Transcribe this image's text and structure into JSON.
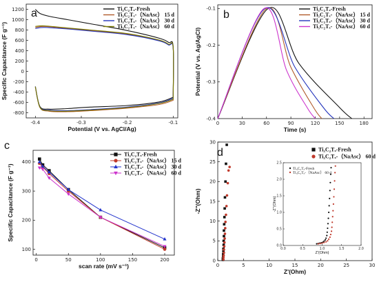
{
  "figure": {
    "panels": [
      "a",
      "b",
      "c",
      "d"
    ]
  },
  "chart_data": [
    {
      "id": "a",
      "type": "line",
      "label": "a",
      "xlabel": "Potential (V vs. AgCl/Ag)",
      "ylabel": "Specific Capacitance (F g⁻¹)",
      "xlim": [
        -0.42,
        -0.09
      ],
      "ylim": [
        -900,
        1300
      ],
      "xticks": [
        -0.4,
        -0.3,
        -0.2,
        -0.1
      ],
      "xticklabels": [
        "-0.4",
        "-0.3",
        "-0.2",
        "-0.1"
      ],
      "yticks": [
        -800,
        -600,
        -400,
        -200,
        0,
        200,
        400,
        600,
        800,
        1000,
        1200
      ],
      "legend": "top-right",
      "series": [
        {
          "name": "Ti₃C₂Tₓ-Fresh",
          "color": "#111111",
          "upper": [
            [
              -0.4,
              1200
            ],
            [
              -0.39,
              1120
            ],
            [
              -0.37,
              1065
            ],
            [
              -0.33,
              1000
            ],
            [
              -0.28,
              920
            ],
            [
              -0.2,
              790
            ],
            [
              -0.13,
              640
            ],
            [
              -0.11,
              560
            ],
            [
              -0.1,
              480
            ],
            [
              -0.1,
              -500
            ]
          ],
          "lower": [
            [
              -0.1,
              -500
            ],
            [
              -0.13,
              -590
            ],
            [
              -0.2,
              -660
            ],
            [
              -0.28,
              -690
            ],
            [
              -0.33,
              -720
            ],
            [
              -0.37,
              -730
            ],
            [
              -0.39,
              -680
            ],
            [
              -0.4,
              -300
            ]
          ]
        },
        {
          "name": "Ti₃C₂Tₓ-（NaAsc） 15 d",
          "color": "#b05a2a",
          "upper": [
            [
              -0.4,
              850
            ],
            [
              -0.38,
              870
            ],
            [
              -0.33,
              830
            ],
            [
              -0.28,
              790
            ],
            [
              -0.2,
              720
            ],
            [
              -0.13,
              600
            ],
            [
              -0.11,
              520
            ],
            [
              -0.1,
              460
            ],
            [
              -0.1,
              -560
            ]
          ],
          "lower": [
            [
              -0.1,
              -560
            ],
            [
              -0.13,
              -640
            ],
            [
              -0.2,
              -710
            ],
            [
              -0.28,
              -760
            ],
            [
              -0.33,
              -780
            ],
            [
              -0.37,
              -770
            ],
            [
              -0.39,
              -700
            ],
            [
              -0.4,
              -300
            ]
          ]
        },
        {
          "name": "Ti₃C₂Tₓ-（NaAsc） 30 d",
          "color": "#2233bb",
          "upper": [
            [
              -0.4,
              830
            ],
            [
              -0.38,
              850
            ],
            [
              -0.33,
              820
            ],
            [
              -0.28,
              780
            ],
            [
              -0.2,
              710
            ],
            [
              -0.13,
              590
            ],
            [
              -0.11,
              510
            ],
            [
              -0.1,
              450
            ],
            [
              -0.1,
              -520
            ]
          ],
          "lower": [
            [
              -0.1,
              -520
            ],
            [
              -0.13,
              -610
            ],
            [
              -0.2,
              -690
            ],
            [
              -0.28,
              -740
            ],
            [
              -0.33,
              -760
            ],
            [
              -0.37,
              -750
            ],
            [
              -0.39,
              -690
            ],
            [
              -0.4,
              -290
            ]
          ]
        },
        {
          "name": "Ti₃C₂Tₓ-（NaAsc） 60 d",
          "color": "#7a7a00",
          "upper": [
            [
              -0.4,
              870
            ],
            [
              -0.38,
              880
            ],
            [
              -0.33,
              840
            ],
            [
              -0.28,
              800
            ],
            [
              -0.2,
              730
            ],
            [
              -0.13,
              605
            ],
            [
              -0.11,
              525
            ],
            [
              -0.1,
              465
            ],
            [
              -0.1,
              -540
            ]
          ],
          "lower": [
            [
              -0.1,
              -540
            ],
            [
              -0.13,
              -620
            ],
            [
              -0.2,
              -700
            ],
            [
              -0.28,
              -750
            ],
            [
              -0.33,
              -770
            ],
            [
              -0.37,
              -760
            ],
            [
              -0.39,
              -695
            ],
            [
              -0.4,
              -295
            ]
          ]
        }
      ]
    },
    {
      "id": "b",
      "type": "line",
      "label": "b",
      "xlabel": "Time (s)",
      "ylabel": "Potential (V vs. Ag/AgCl)",
      "xlim": [
        0,
        190
      ],
      "ylim": [
        -0.4,
        -0.09
      ],
      "xticks": [
        0,
        30,
        60,
        90,
        120,
        150,
        180
      ],
      "yticks": [
        -0.4,
        -0.3,
        -0.2,
        -0.1
      ],
      "yticklabels": [
        "-0.4",
        "-0.3",
        "-0.2",
        "-0.1"
      ],
      "legend": "top-right",
      "series": [
        {
          "name": "Ti₃C₂Tₓ-Fresh",
          "color": "#111111",
          "points": [
            [
              0,
              -0.4
            ],
            [
              62,
              -0.1
            ],
            [
              100,
              -0.25
            ],
            [
              150,
              -0.37
            ],
            [
              165,
              -0.4
            ]
          ]
        },
        {
          "name": "Ti₃C₂Tₓ-（NaAsc） 15 d",
          "color": "#b05a2a",
          "points": [
            [
              0,
              -0.4
            ],
            [
              60,
              -0.1
            ],
            [
              90,
              -0.26
            ],
            [
              118,
              -0.37
            ],
            [
              128,
              -0.4
            ]
          ]
        },
        {
          "name": "Ti₃C₂Tₓ-（NaAsc） 30 d",
          "color": "#2233bb",
          "points": [
            [
              0,
              -0.4
            ],
            [
              58,
              -0.1
            ],
            [
              95,
              -0.26
            ],
            [
              130,
              -0.37
            ],
            [
              143,
              -0.4
            ]
          ]
        },
        {
          "name": "Ti₃C₂Tₓ-（NaAsc） 60 d",
          "color": "#cc33cc",
          "points": [
            [
              0,
              -0.4
            ],
            [
              57,
              -0.1
            ],
            [
              85,
              -0.27
            ],
            [
              110,
              -0.37
            ],
            [
              120,
              -0.4
            ]
          ]
        }
      ]
    },
    {
      "id": "c",
      "type": "line",
      "label": "c",
      "xlabel": "scan rate (mV s⁻¹)",
      "ylabel": "Specific Capacitance (F g⁻¹)",
      "xlim": [
        -5,
        215
      ],
      "ylim": [
        80,
        440
      ],
      "xticks": [
        0,
        50,
        100,
        150,
        200
      ],
      "yticks": [
        100,
        200,
        300,
        400
      ],
      "legend": "top-right",
      "series": [
        {
          "name": "Ti₃C₂Tₓ-Fresh",
          "color": "#111111",
          "marker": "square",
          "x": [
            5,
            10,
            20,
            50,
            100,
            200
          ],
          "y": [
            410,
            390,
            370,
            305,
            210,
            105
          ]
        },
        {
          "name": "Ti₃C₂Tₓ-（NaAsc） 15 d",
          "color": "#c0392b",
          "marker": "circle",
          "x": [
            5,
            10,
            20,
            50,
            100,
            200
          ],
          "y": [
            395,
            383,
            360,
            300,
            210,
            100
          ]
        },
        {
          "name": "Ti₃C₂Tₓ-（NaAsc） 30 d",
          "color": "#2233cc",
          "marker": "triangle",
          "x": [
            5,
            10,
            20,
            50,
            100,
            200
          ],
          "y": [
            400,
            385,
            365,
            305,
            235,
            135
          ]
        },
        {
          "name": "Ti₃C₂Tₓ-（NaAsc） 60 d",
          "color": "#cc33cc",
          "marker": "triangle-down",
          "x": [
            5,
            10,
            20,
            50,
            100,
            200
          ],
          "y": [
            380,
            375,
            345,
            290,
            210,
            110
          ]
        }
      ]
    },
    {
      "id": "d",
      "type": "scatter",
      "label": "d",
      "xlabel": "Z'(Ohm)",
      "ylabel": "-Z''(Ohm)",
      "xlim": [
        0,
        30
      ],
      "ylim": [
        0,
        30
      ],
      "xticks": [
        0,
        5,
        10,
        15,
        20,
        25,
        30
      ],
      "yticks": [
        0,
        5,
        10,
        15,
        20,
        25,
        30
      ],
      "legend": "top-right",
      "series": [
        {
          "name": "Ti₃C₂Tₓ-Fresh",
          "color": "#111111",
          "marker": "square",
          "x": [
            1.0,
            1.0,
            1.05,
            1.05,
            1.1,
            1.1,
            1.15,
            1.15,
            1.2,
            1.2,
            1.25,
            1.3,
            1.35,
            1.4,
            1.5,
            1.6,
            1.75
          ],
          "y": [
            0.2,
            0.6,
            1.0,
            1.6,
            2.3,
            3.0,
            4.0,
            5.0,
            6.2,
            7.6,
            9.2,
            11.0,
            13.2,
            16.0,
            20.0,
            24.5,
            29.3
          ]
        },
        {
          "name": "Ti₃C₂Tₓ-（NaAsc） 60 d",
          "color": "#c0392b",
          "marker": "circle",
          "x": [
            1.1,
            1.1,
            1.15,
            1.2,
            1.2,
            1.25,
            1.3,
            1.35,
            1.4,
            1.45,
            1.5,
            1.6,
            1.7,
            1.8,
            1.95,
            2.1,
            2.3
          ],
          "y": [
            0.3,
            0.8,
            1.3,
            2.0,
            2.8,
            3.6,
            4.6,
            5.6,
            6.8,
            8.2,
            9.8,
            11.6,
            13.8,
            16.5,
            19.6,
            22.8,
            23.7
          ]
        }
      ],
      "inset": {
        "xlabel": "Z'(Ohm)",
        "ylabel": "-Z''(Ohm)",
        "xlim": [
          0,
          2.0
        ],
        "ylim": [
          0,
          2.5
        ],
        "xticks": [
          0.0,
          0.5,
          1.0,
          1.5,
          2.0
        ],
        "xticklabels": [
          "0.0",
          "0.5",
          "1.0",
          "1.5",
          "2.0"
        ],
        "yticks": [
          0.0,
          0.5,
          1.0,
          1.5,
          2.0,
          2.5
        ],
        "yticklabels": [
          "0.0",
          "0.5",
          "1.0",
          "1.5",
          "2.0",
          "2.5"
        ],
        "series": [
          {
            "name": "Ti₃C₂Tₓ-Fresh",
            "color": "#111111",
            "x": [
              0.86,
              0.9,
              0.94,
              0.98,
              1.02,
              1.05,
              1.08,
              1.1,
              1.12,
              1.13,
              1.14,
              1.15,
              1.16,
              1.17,
              1.18,
              1.19,
              1.2,
              1.21,
              1.22,
              1.23
            ],
            "y": [
              0.05,
              0.06,
              0.07,
              0.08,
              0.1,
              0.13,
              0.17,
              0.22,
              0.3,
              0.4,
              0.52,
              0.66,
              0.82,
              1.0,
              1.2,
              1.42,
              1.66,
              1.9,
              2.15,
              2.35
            ]
          },
          {
            "name": "Ti₃C₂Tₓ-（NaAsc） 60 d",
            "color": "#c0392b",
            "x": [
              0.9,
              0.95,
              1.0,
              1.05,
              1.1,
              1.14,
              1.17,
              1.2,
              1.22,
              1.24,
              1.25,
              1.26,
              1.27,
              1.28,
              1.29,
              1.3,
              1.31,
              1.32,
              1.33,
              1.34
            ],
            "y": [
              0.05,
              0.06,
              0.07,
              0.09,
              0.11,
              0.14,
              0.19,
              0.25,
              0.33,
              0.43,
              0.55,
              0.7,
              0.87,
              1.05,
              1.25,
              1.47,
              1.7,
              1.95,
              2.2,
              2.4
            ]
          }
        ]
      }
    }
  ]
}
